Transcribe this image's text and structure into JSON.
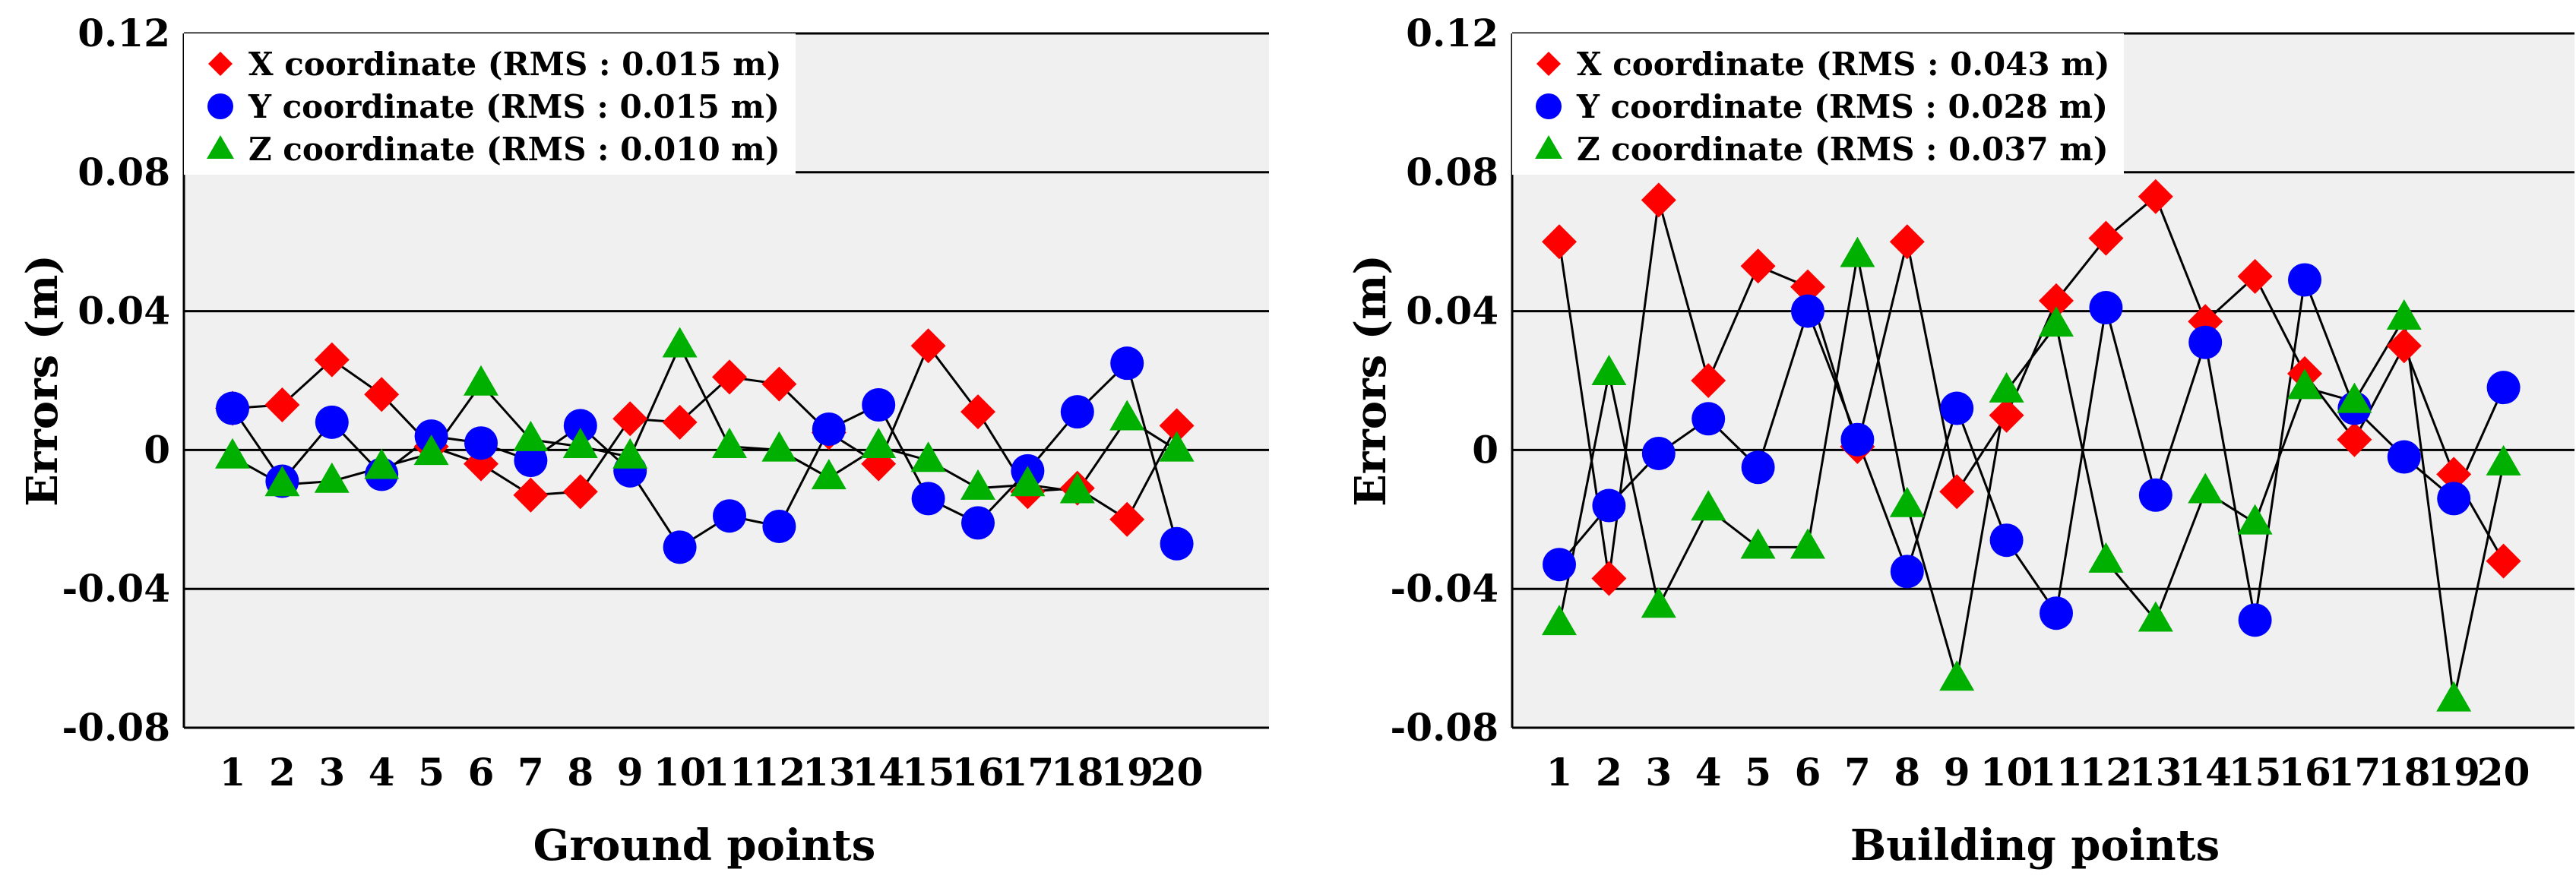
{
  "colors": {
    "x_series": "#ff0000",
    "y_series": "#0000ff",
    "z_series": "#00b000",
    "plot_background": "#f0f0f0",
    "line": "#000000"
  },
  "chart_data": [
    {
      "type": "line",
      "title": "",
      "xlabel": "Ground points",
      "ylabel": "Errors (m)",
      "ylim": [
        -0.08,
        0.12
      ],
      "yticks": [
        "-0.08",
        "-0.04",
        "0",
        "0.04",
        "0.08",
        "0.12"
      ],
      "grid": "horizontal",
      "legend_position": "top-left",
      "categories": [
        "1",
        "2",
        "3",
        "4",
        "5",
        "6",
        "7",
        "8",
        "9",
        "10",
        "11",
        "12",
        "13",
        "14",
        "15",
        "16",
        "17",
        "18",
        "19",
        "20"
      ],
      "series": [
        {
          "name": "X coordinate (RMS : 0.015 m)",
          "marker": "diamond",
          "color": "#ff0000",
          "values": [
            0.012,
            0.013,
            0.026,
            0.016,
            0.001,
            -0.004,
            -0.013,
            -0.012,
            0.009,
            0.008,
            0.021,
            0.019,
            0.005,
            -0.004,
            0.03,
            0.011,
            -0.012,
            -0.011,
            -0.02,
            0.007
          ]
        },
        {
          "name": "Y coordinate (RMS : 0.015 m)",
          "marker": "circle",
          "color": "#0000ff",
          "values": [
            0.012,
            -0.009,
            0.008,
            -0.007,
            0.004,
            0.002,
            -0.003,
            0.007,
            -0.006,
            -0.028,
            -0.019,
            -0.022,
            0.006,
            0.013,
            -0.014,
            -0.021,
            -0.006,
            0.011,
            0.025,
            -0.027
          ]
        },
        {
          "name": "Z coordinate (RMS : 0.010 m)",
          "marker": "triangle",
          "color": "#00b000",
          "values": [
            -0.002,
            -0.01,
            -0.009,
            -0.005,
            -0.001,
            0.019,
            0.003,
            0.001,
            -0.002,
            0.03,
            0.001,
            0.0,
            -0.008,
            0.001,
            -0.003,
            -0.011,
            -0.01,
            -0.012,
            0.009,
            0.0
          ]
        }
      ]
    },
    {
      "type": "line",
      "title": "",
      "xlabel": "Building points",
      "ylabel": "Errors (m)",
      "ylim": [
        -0.08,
        0.12
      ],
      "yticks": [
        "-0.08",
        "-0.04",
        "0",
        "0.04",
        "0.08",
        "0.12"
      ],
      "grid": "horizontal",
      "legend_position": "top-left",
      "categories": [
        "1",
        "2",
        "3",
        "4",
        "5",
        "6",
        "7",
        "8",
        "9",
        "10",
        "11",
        "12",
        "13",
        "14",
        "15",
        "16",
        "17",
        "18",
        "19",
        "20"
      ],
      "series": [
        {
          "name": "X coordinate (RMS : 0.043 m)",
          "marker": "diamond",
          "color": "#ff0000",
          "values": [
            0.06,
            -0.037,
            0.072,
            0.02,
            0.053,
            0.047,
            0.001,
            0.06,
            -0.012,
            0.01,
            0.043,
            0.061,
            0.073,
            0.037,
            0.05,
            0.022,
            0.003,
            0.03,
            -0.007,
            -0.032
          ]
        },
        {
          "name": "Y coordinate (RMS : 0.028 m)",
          "marker": "circle",
          "color": "#0000ff",
          "values": [
            -0.033,
            -0.016,
            -0.001,
            0.009,
            -0.005,
            0.04,
            0.003,
            -0.035,
            0.012,
            -0.026,
            -0.047,
            0.041,
            -0.013,
            0.031,
            -0.049,
            0.049,
            0.012,
            -0.002,
            -0.014,
            0.018
          ]
        },
        {
          "name": "Z coordinate (RMS : 0.037 m)",
          "marker": "triangle",
          "color": "#00b000",
          "values": [
            -0.05,
            0.022,
            -0.045,
            -0.017,
            -0.028,
            -0.028,
            0.056,
            -0.016,
            -0.066,
            0.017,
            0.036,
            -0.032,
            -0.049,
            -0.012,
            -0.021,
            0.018,
            0.014,
            0.038,
            -0.072,
            -0.004
          ]
        }
      ]
    }
  ]
}
